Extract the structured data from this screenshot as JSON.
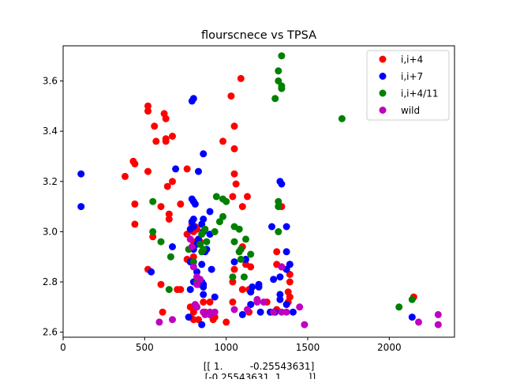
{
  "chart_data": {
    "type": "scatter",
    "title": "flourscnece vs TPSA",
    "xlabel_lines": [
      "[[ 1.         -0.25543631]",
      " [-0.25543631  1.        ]]"
    ],
    "ylabel": "",
    "xlim": [
      0,
      2400
    ],
    "ylim": [
      2.58,
      3.74
    ],
    "xticks": [
      0,
      500,
      1000,
      1500,
      2000
    ],
    "yticks": [
      2.6,
      2.8,
      3.0,
      3.2,
      3.4,
      3.6
    ],
    "grid": false,
    "legend_position": "top-right",
    "series": [
      {
        "name": "i,i+4",
        "color": "#ff0000",
        "points": [
          [
            520,
            3.5
          ],
          [
            520,
            3.48
          ],
          [
            620,
            3.47
          ],
          [
            630,
            3.45
          ],
          [
            1090,
            3.61
          ],
          [
            1030,
            3.54
          ],
          [
            560,
            3.42
          ],
          [
            1050,
            3.42
          ],
          [
            670,
            3.38
          ],
          [
            630,
            3.37
          ],
          [
            630,
            3.36
          ],
          [
            570,
            3.36
          ],
          [
            980,
            3.36
          ],
          [
            1050,
            3.33
          ],
          [
            430,
            3.28
          ],
          [
            440,
            3.27
          ],
          [
            760,
            3.25
          ],
          [
            520,
            3.24
          ],
          [
            1050,
            3.23
          ],
          [
            380,
            3.22
          ],
          [
            670,
            3.2
          ],
          [
            640,
            3.18
          ],
          [
            1060,
            3.19
          ],
          [
            1130,
            3.14
          ],
          [
            1040,
            3.14
          ],
          [
            440,
            3.11
          ],
          [
            600,
            3.1
          ],
          [
            1100,
            3.1
          ],
          [
            650,
            3.07
          ],
          [
            1340,
            3.1
          ],
          [
            720,
            3.11
          ],
          [
            650,
            3.05
          ],
          [
            440,
            3.03
          ],
          [
            790,
            3.03
          ],
          [
            810,
            3.02
          ],
          [
            820,
            3.01
          ],
          [
            760,
            2.99
          ],
          [
            800,
            3.0
          ],
          [
            550,
            2.98
          ],
          [
            800,
            2.96
          ],
          [
            840,
            2.96
          ],
          [
            1100,
            2.94
          ],
          [
            1080,
            2.92
          ],
          [
            760,
            2.89
          ],
          [
            800,
            2.9
          ],
          [
            1310,
            2.92
          ],
          [
            1310,
            2.87
          ],
          [
            1390,
            2.87
          ],
          [
            1340,
            2.86
          ],
          [
            1150,
            2.86
          ],
          [
            1120,
            2.87
          ],
          [
            1050,
            2.85
          ],
          [
            520,
            2.85
          ],
          [
            1040,
            2.8
          ],
          [
            600,
            2.79
          ],
          [
            1390,
            2.83
          ],
          [
            1390,
            2.8
          ],
          [
            1100,
            2.77
          ],
          [
            830,
            2.79
          ],
          [
            700,
            2.77
          ],
          [
            720,
            2.77
          ],
          [
            1150,
            2.76
          ],
          [
            1140,
            2.77
          ],
          [
            1380,
            2.76
          ],
          [
            1390,
            2.74
          ],
          [
            1250,
            2.72
          ],
          [
            1380,
            2.72
          ],
          [
            900,
            2.72
          ],
          [
            1040,
            2.72
          ],
          [
            860,
            2.72
          ],
          [
            780,
            2.7
          ],
          [
            820,
            2.7
          ],
          [
            1310,
            2.69
          ],
          [
            800,
            2.68
          ],
          [
            870,
            2.68
          ],
          [
            1140,
            2.68
          ],
          [
            610,
            2.68
          ],
          [
            900,
            2.67
          ],
          [
            780,
            2.66
          ],
          [
            800,
            2.65
          ],
          [
            830,
            2.65
          ],
          [
            920,
            2.65
          ],
          [
            1000,
            2.64
          ],
          [
            930,
            2.66
          ],
          [
            2150,
            2.74
          ]
        ]
      },
      {
        "name": "i,i+7",
        "color": "#0000ff",
        "points": [
          [
            790,
            3.52
          ],
          [
            800,
            3.53
          ],
          [
            860,
            3.31
          ],
          [
            110,
            3.23
          ],
          [
            690,
            3.25
          ],
          [
            830,
            3.24
          ],
          [
            1330,
            3.2
          ],
          [
            1340,
            3.19
          ],
          [
            790,
            3.13
          ],
          [
            800,
            3.12
          ],
          [
            810,
            3.11
          ],
          [
            110,
            3.1
          ],
          [
            900,
            3.08
          ],
          [
            800,
            3.05
          ],
          [
            860,
            3.05
          ],
          [
            850,
            3.03
          ],
          [
            790,
            3.04
          ],
          [
            800,
            3.02
          ],
          [
            1280,
            3.02
          ],
          [
            780,
            3.01
          ],
          [
            860,
            3.0
          ],
          [
            1370,
            3.02
          ],
          [
            830,
            2.97
          ],
          [
            900,
            2.99
          ],
          [
            820,
            2.95
          ],
          [
            870,
            2.92
          ],
          [
            800,
            2.93
          ],
          [
            880,
            2.93
          ],
          [
            670,
            2.94
          ],
          [
            1120,
            2.89
          ],
          [
            1050,
            2.88
          ],
          [
            1370,
            2.92
          ],
          [
            780,
            2.88
          ],
          [
            850,
            2.87
          ],
          [
            1390,
            2.87
          ],
          [
            1370,
            2.85
          ],
          [
            1290,
            2.81
          ],
          [
            1330,
            2.82
          ],
          [
            820,
            2.84
          ],
          [
            910,
            2.85
          ],
          [
            540,
            2.84
          ],
          [
            850,
            2.8
          ],
          [
            860,
            2.79
          ],
          [
            800,
            2.8
          ],
          [
            780,
            2.77
          ],
          [
            860,
            2.78
          ],
          [
            1200,
            2.79
          ],
          [
            1200,
            2.78
          ],
          [
            1160,
            2.78
          ],
          [
            1150,
            2.76
          ],
          [
            1330,
            2.75
          ],
          [
            1330,
            2.73
          ],
          [
            1370,
            2.71
          ],
          [
            860,
            2.75
          ],
          [
            930,
            2.74
          ],
          [
            1150,
            2.71
          ],
          [
            1210,
            2.68
          ],
          [
            1270,
            2.68
          ],
          [
            1300,
            2.68
          ],
          [
            1410,
            2.68
          ],
          [
            1100,
            2.67
          ],
          [
            770,
            2.66
          ],
          [
            850,
            2.63
          ],
          [
            2140,
            2.66
          ]
        ]
      },
      {
        "name": "i,i+4/11",
        "color": "#008000",
        "points": [
          [
            1340,
            3.7
          ],
          [
            1320,
            3.64
          ],
          [
            1320,
            3.6
          ],
          [
            1340,
            3.58
          ],
          [
            1340,
            3.57
          ],
          [
            1300,
            3.53
          ],
          [
            1710,
            3.45
          ],
          [
            940,
            3.14
          ],
          [
            980,
            3.13
          ],
          [
            1000,
            3.12
          ],
          [
            550,
            3.12
          ],
          [
            1320,
            3.12
          ],
          [
            1320,
            3.1
          ],
          [
            980,
            3.06
          ],
          [
            960,
            3.04
          ],
          [
            1050,
            3.02
          ],
          [
            1080,
            3.01
          ],
          [
            1320,
            3.0
          ],
          [
            550,
            3.0
          ],
          [
            930,
            3.0
          ],
          [
            870,
            3.01
          ],
          [
            850,
            2.99
          ],
          [
            1120,
            2.97
          ],
          [
            1050,
            2.96
          ],
          [
            600,
            2.96
          ],
          [
            880,
            2.96
          ],
          [
            840,
            2.95
          ],
          [
            1090,
            2.93
          ],
          [
            1080,
            2.92
          ],
          [
            770,
            2.93
          ],
          [
            860,
            2.93
          ],
          [
            850,
            2.92
          ],
          [
            660,
            2.9
          ],
          [
            1150,
            2.91
          ],
          [
            1090,
            2.89
          ],
          [
            800,
            2.88
          ],
          [
            1110,
            2.82
          ],
          [
            1040,
            2.82
          ],
          [
            820,
            2.8
          ],
          [
            650,
            2.77
          ],
          [
            2060,
            2.7
          ],
          [
            2140,
            2.73
          ]
        ]
      },
      {
        "name": "wild",
        "color": "#bf00bf",
        "points": [
          [
            780,
            2.97
          ],
          [
            790,
            2.94
          ],
          [
            800,
            2.86
          ],
          [
            1340,
            2.86
          ],
          [
            820,
            2.82
          ],
          [
            840,
            2.81
          ],
          [
            820,
            2.79
          ],
          [
            810,
            2.71
          ],
          [
            820,
            2.7
          ],
          [
            860,
            2.68
          ],
          [
            900,
            2.68
          ],
          [
            870,
            2.67
          ],
          [
            930,
            2.68
          ],
          [
            900,
            2.67
          ],
          [
            1050,
            2.69
          ],
          [
            1190,
            2.73
          ],
          [
            1190,
            2.72
          ],
          [
            1230,
            2.72
          ],
          [
            1290,
            2.68
          ],
          [
            1340,
            2.68
          ],
          [
            1370,
            2.68
          ],
          [
            1450,
            2.7
          ],
          [
            1480,
            2.63
          ],
          [
            590,
            2.64
          ],
          [
            670,
            2.65
          ],
          [
            1130,
            2.69
          ],
          [
            2300,
            2.67
          ],
          [
            2300,
            2.63
          ],
          [
            2180,
            2.64
          ]
        ]
      }
    ]
  }
}
